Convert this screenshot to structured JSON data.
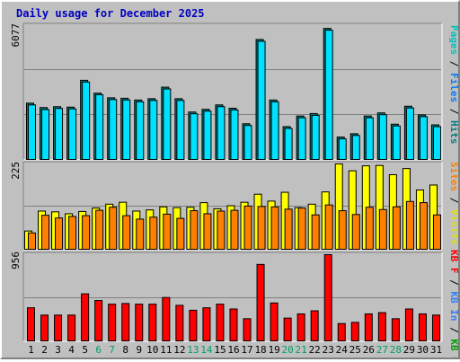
{
  "chart_data": {
    "type": "bar",
    "title": "Daily usage for December 2025",
    "categories": [
      "1",
      "2",
      "3",
      "4",
      "5",
      "6",
      "7",
      "8",
      "9",
      "10",
      "11",
      "12",
      "13",
      "14",
      "15",
      "16",
      "17",
      "18",
      "19",
      "20",
      "21",
      "22",
      "23",
      "24",
      "25",
      "26",
      "27",
      "28",
      "29",
      "30",
      "31"
    ],
    "weekend_days": [
      "6",
      "7",
      "13",
      "14",
      "20",
      "21",
      "27",
      "28"
    ],
    "panels": [
      {
        "id": "top",
        "scale_max_label": "6077",
        "ylim": [
          0,
          6077
        ],
        "series": [
          {
            "name": "Hits",
            "values": [
              2580,
              2380,
              2420,
              2400,
              3610,
              3030,
              2820,
              2800,
              2720,
              2780,
              3300,
              2780,
              2180,
              2300,
              2500,
              2350,
              1650,
              5450,
              2720,
              1520,
              2000,
              2110,
              5950,
              1050,
              1200,
              2000,
              2140,
              1630,
              2440,
              2050,
              1600
            ]
          },
          {
            "name": "Files",
            "values": [
              2500,
              2290,
              2340,
              2320,
              3530,
              2960,
              2740,
              2720,
              2640,
              2700,
              3220,
              2700,
              2100,
              2220,
              2420,
              2270,
              1570,
              5370,
              2640,
              1440,
              1920,
              2030,
              5870,
              970,
              1120,
              1920,
              2060,
              1550,
              2360,
              1970,
              1520
            ]
          },
          {
            "name": "Pages",
            "values": [
              0,
              0,
              0,
              0,
              0,
              0,
              0,
              0,
              0,
              0,
              0,
              0,
              0,
              0,
              0,
              0,
              0,
              0,
              0,
              0,
              0,
              0,
              0,
              0,
              0,
              0,
              0,
              0,
              0,
              0,
              0
            ]
          }
        ]
      },
      {
        "id": "middle",
        "scale_max_label": "225",
        "ylim": [
          0,
          225
        ],
        "series": [
          {
            "name": "Visits",
            "values": [
              50,
              102,
              100,
              95,
              101,
              110,
              120,
              125,
              102,
              105,
              113,
              111,
              112,
              124,
              108,
              116,
              125,
              146,
              128,
              151,
              111,
              120,
              152,
              225,
              207,
              220,
              221,
              197,
              213,
              157,
              170
            ]
          },
          {
            "name": "Sites",
            "values": [
              45,
              91,
              84,
              88,
              90,
              104,
              112,
              90,
              81,
              86,
              94,
              83,
              103,
              95,
              102,
              104,
              115,
              114,
              113,
              107,
              110,
              92,
              118,
              103,
              93,
              112,
              106,
              113,
              127,
              124,
              92
            ]
          }
        ]
      },
      {
        "id": "bottom",
        "scale_max_label": "956",
        "ylim": [
          0,
          956
        ],
        "series": [
          {
            "name": "KB In",
            "values": [
              0,
              0,
              0,
              0,
              0,
              0,
              0,
              0,
              0,
              0,
              0,
              0,
              0,
              0,
              0,
              0,
              0,
              0,
              0,
              0,
              0,
              0,
              0,
              0,
              0,
              0,
              0,
              0,
              0,
              0,
              0
            ]
          },
          {
            "name": "KB Out",
            "values": [
              0,
              0,
              0,
              0,
              0,
              0,
              0,
              0,
              0,
              0,
              0,
              0,
              0,
              0,
              0,
              0,
              0,
              0,
              0,
              0,
              0,
              0,
              0,
              0,
              0,
              0,
              0,
              0,
              0,
              0,
              0
            ]
          },
          {
            "name": "KB F",
            "values": [
              373,
              293,
              293,
              293,
              526,
              453,
              413,
              420,
              413,
              413,
              486,
              400,
              346,
              373,
              413,
              360,
              253,
              849,
              426,
              260,
              306,
              340,
              956,
              200,
              213,
              306,
              320,
              253,
              360,
              306,
              293
            ]
          }
        ]
      }
    ],
    "legends": [
      {
        "panel": "top",
        "parts": [
          {
            "text": "Pages",
            "color": "#00c0c0"
          },
          {
            "text": " / ",
            "color": "#000000"
          },
          {
            "text": "Files",
            "color": "#0080ff"
          },
          {
            "text": " / ",
            "color": "#000000"
          },
          {
            "text": "Hits",
            "color": "#008080"
          }
        ]
      },
      {
        "panel": "middle",
        "parts": [
          {
            "text": "Sites",
            "color": "#ff8000"
          },
          {
            "text": " / ",
            "color": "#000000"
          },
          {
            "text": "Visits",
            "color": "#e0e000"
          }
        ]
      },
      {
        "panel": "bottom",
        "parts": [
          {
            "text": "KB F",
            "color": "#ff0000"
          },
          {
            "text": " / ",
            "color": "#000000"
          },
          {
            "text": "KB In",
            "color": "#3080ff"
          },
          {
            "text": " / ",
            "color": "#000000"
          },
          {
            "text": "KB Out",
            "color": "#00a000"
          }
        ]
      }
    ],
    "colors": {
      "hits": "#008080",
      "files": "#00e0ff",
      "pages": "#00c0c0",
      "visits": "#ffff00",
      "sites": "#ff8000",
      "kbf": "#ff0000",
      "title": "#0000c0",
      "weekday_label": "#000000",
      "weekend_label": "#00a060",
      "panel_bg": "#c0c0c0"
    }
  }
}
